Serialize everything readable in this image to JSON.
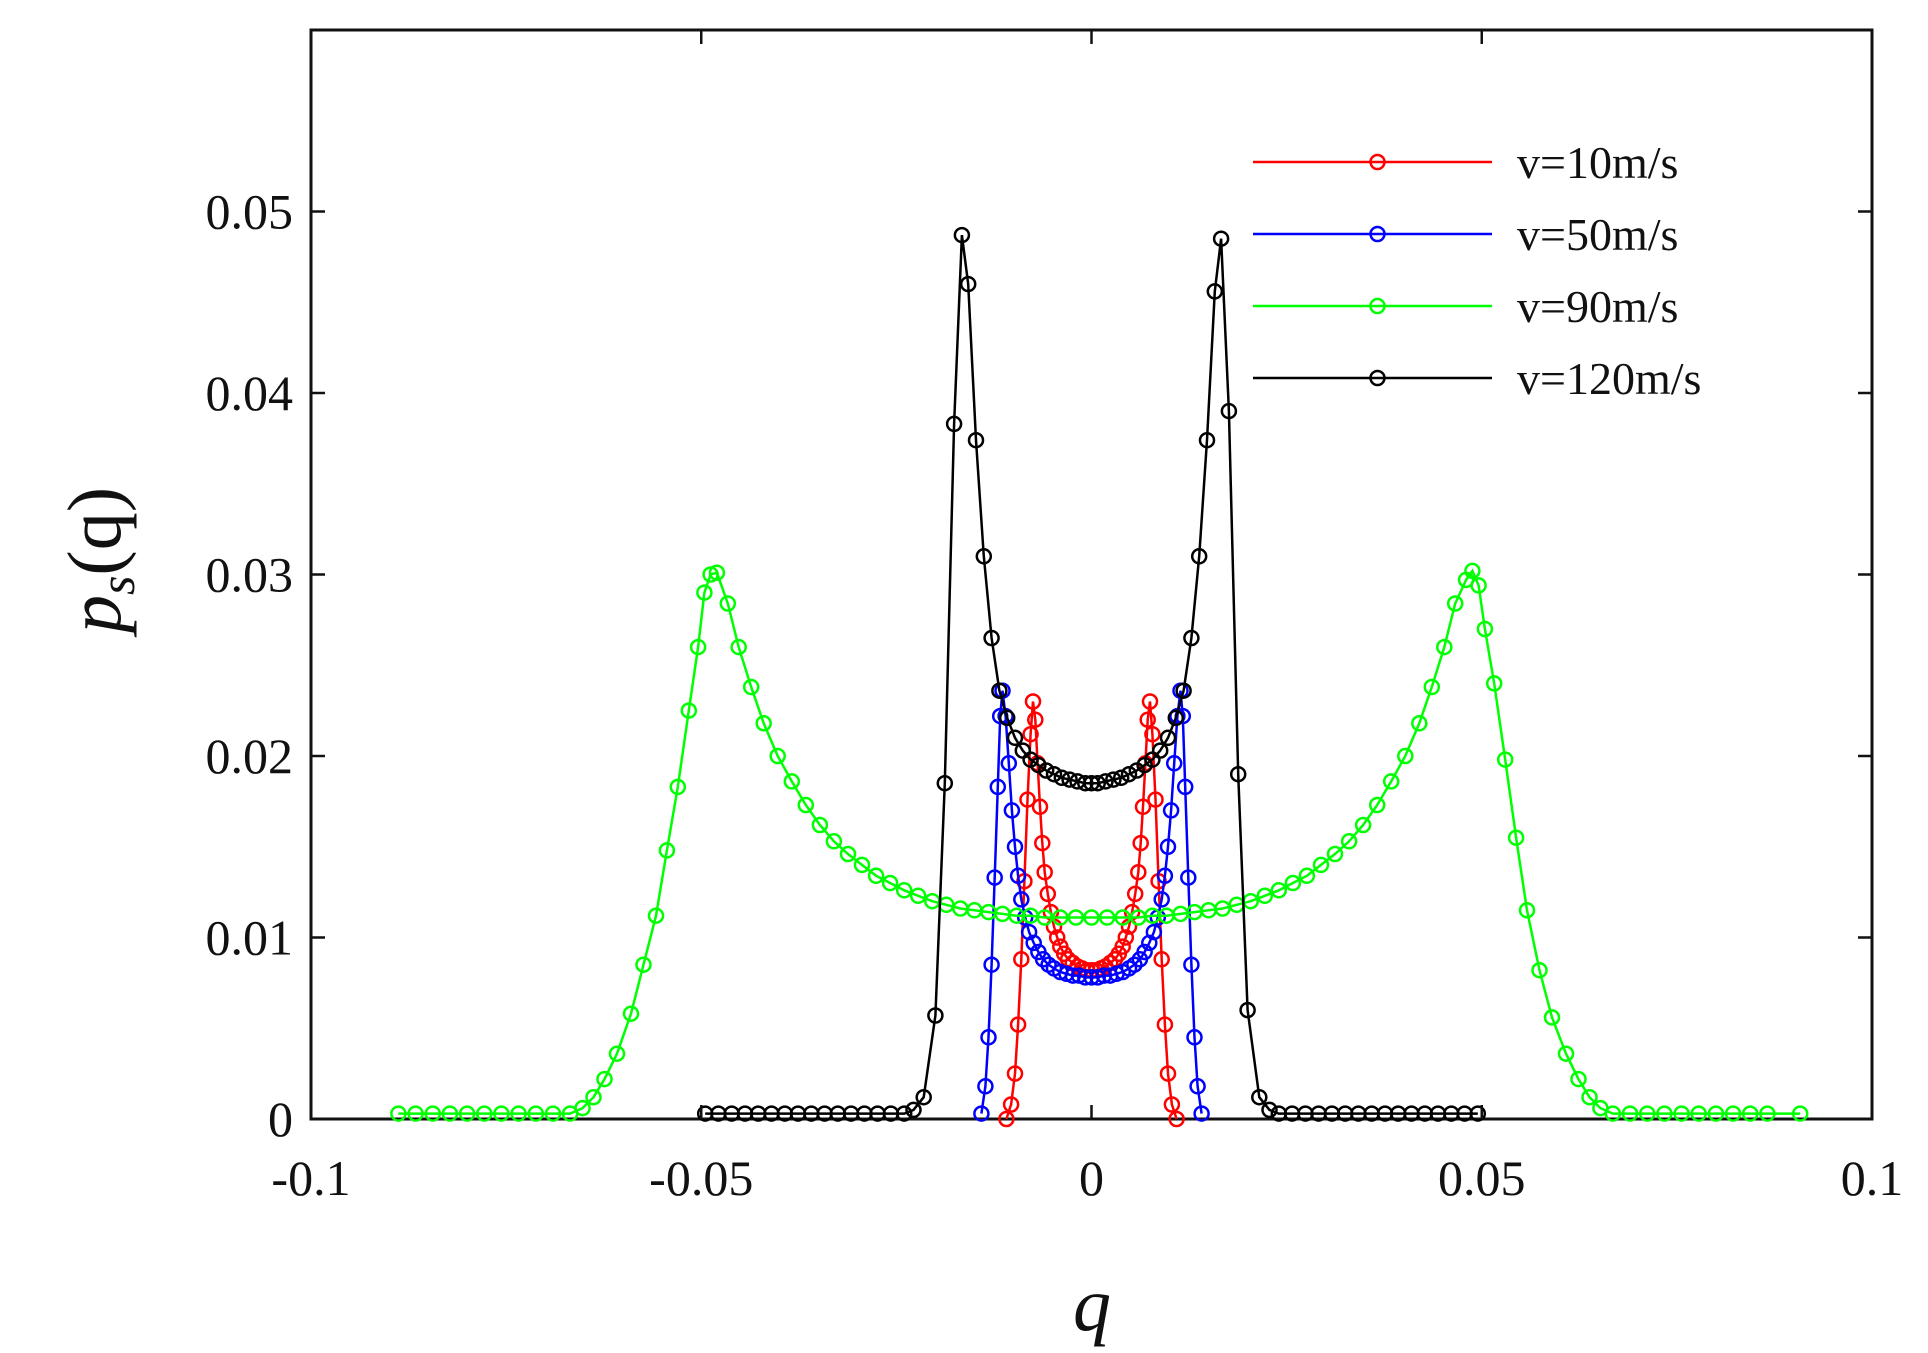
{
  "chart_data": {
    "type": "line",
    "title": "",
    "xlabel": "q",
    "ylabel": "p_s(q)",
    "ylabel_main": "p",
    "ylabel_sub": "s",
    "ylabel_paren": "(q)",
    "xlim": [
      -0.1,
      0.1
    ],
    "ylim": [
      0,
      0.06
    ],
    "xticks": [
      -0.1,
      -0.05,
      0,
      0.05,
      0.1
    ],
    "xtick_labels": [
      "-0.1",
      "-0.05",
      "0",
      "0.05",
      "0.1"
    ],
    "yticks": [
      0,
      0.01,
      0.02,
      0.03,
      0.04,
      0.05
    ],
    "ytick_labels": [
      "0",
      "0.01",
      "0.02",
      "0.03",
      "0.04",
      "0.05"
    ],
    "grid": false,
    "legend_position": "top-right",
    "marker": "circle",
    "series": [
      {
        "name": "v=10m/s",
        "color": "#ff0000",
        "points": [
          [
            -0.0109,
            0
          ],
          [
            -0.0103,
            0.0008
          ],
          [
            -0.0098,
            0.0025
          ],
          [
            -0.0094,
            0.0052
          ],
          [
            -0.009,
            0.0088
          ],
          [
            -0.0086,
            0.0131
          ],
          [
            -0.0082,
            0.0176
          ],
          [
            -0.0078,
            0.0212
          ],
          [
            -0.0075,
            0.023
          ],
          [
            -0.0072,
            0.022
          ],
          [
            -0.0069,
            0.0196
          ],
          [
            -0.0066,
            0.0172
          ],
          [
            -0.0063,
            0.0152
          ],
          [
            -0.006,
            0.0136
          ],
          [
            -0.0056,
            0.0124
          ],
          [
            -0.0052,
            0.0114
          ],
          [
            -0.0048,
            0.0106
          ],
          [
            -0.0044,
            0.01
          ],
          [
            -0.004,
            0.0095
          ],
          [
            -0.0035,
            0.0091
          ],
          [
            -0.003,
            0.0088
          ],
          [
            -0.0024,
            0.0086
          ],
          [
            -0.0018,
            0.0084
          ],
          [
            -0.0012,
            0.0083
          ],
          [
            -0.0006,
            0.0082
          ],
          [
            0,
            0.0082
          ],
          [
            0.0006,
            0.0082
          ],
          [
            0.0012,
            0.0083
          ],
          [
            0.0018,
            0.0084
          ],
          [
            0.0024,
            0.0086
          ],
          [
            0.003,
            0.0088
          ],
          [
            0.0035,
            0.0091
          ],
          [
            0.004,
            0.0095
          ],
          [
            0.0044,
            0.01
          ],
          [
            0.0048,
            0.0106
          ],
          [
            0.0052,
            0.0114
          ],
          [
            0.0056,
            0.0124
          ],
          [
            0.006,
            0.0136
          ],
          [
            0.0063,
            0.0152
          ],
          [
            0.0066,
            0.0172
          ],
          [
            0.0069,
            0.0196
          ],
          [
            0.0072,
            0.022
          ],
          [
            0.0075,
            0.023
          ],
          [
            0.0078,
            0.0212
          ],
          [
            0.0082,
            0.0176
          ],
          [
            0.0086,
            0.0131
          ],
          [
            0.009,
            0.0088
          ],
          [
            0.0094,
            0.0052
          ],
          [
            0.0098,
            0.0025
          ],
          [
            0.0103,
            0.0008
          ],
          [
            0.0109,
            0
          ]
        ]
      },
      {
        "name": "v=50m/s",
        "color": "#0000ff",
        "points": [
          [
            -0.0141,
            0.0003
          ],
          [
            -0.0136,
            0.0018
          ],
          [
            -0.0132,
            0.0045
          ],
          [
            -0.0128,
            0.0085
          ],
          [
            -0.0124,
            0.0133
          ],
          [
            -0.012,
            0.0183
          ],
          [
            -0.0117,
            0.0222
          ],
          [
            -0.0114,
            0.0236
          ],
          [
            -0.011,
            0.0222
          ],
          [
            -0.0106,
            0.0196
          ],
          [
            -0.0102,
            0.017
          ],
          [
            -0.0098,
            0.015
          ],
          [
            -0.0094,
            0.0134
          ],
          [
            -0.009,
            0.0121
          ],
          [
            -0.0085,
            0.0111
          ],
          [
            -0.008,
            0.0103
          ],
          [
            -0.0074,
            0.0097
          ],
          [
            -0.0068,
            0.0092
          ],
          [
            -0.0062,
            0.0088
          ],
          [
            -0.0055,
            0.0085
          ],
          [
            -0.0048,
            0.0083
          ],
          [
            -0.004,
            0.0081
          ],
          [
            -0.0032,
            0.008
          ],
          [
            -0.0024,
            0.0079
          ],
          [
            -0.0016,
            0.0079
          ],
          [
            -0.0008,
            0.0078
          ],
          [
            0,
            0.0078
          ],
          [
            0.0008,
            0.0078
          ],
          [
            0.0016,
            0.0079
          ],
          [
            0.0024,
            0.0079
          ],
          [
            0.0032,
            0.008
          ],
          [
            0.004,
            0.0081
          ],
          [
            0.0048,
            0.0083
          ],
          [
            0.0055,
            0.0085
          ],
          [
            0.0062,
            0.0088
          ],
          [
            0.0068,
            0.0092
          ],
          [
            0.0074,
            0.0097
          ],
          [
            0.008,
            0.0103
          ],
          [
            0.0085,
            0.0111
          ],
          [
            0.009,
            0.0121
          ],
          [
            0.0094,
            0.0134
          ],
          [
            0.0098,
            0.015
          ],
          [
            0.0102,
            0.017
          ],
          [
            0.0106,
            0.0196
          ],
          [
            0.011,
            0.0222
          ],
          [
            0.0114,
            0.0236
          ],
          [
            0.0117,
            0.0222
          ],
          [
            0.012,
            0.0183
          ],
          [
            0.0124,
            0.0133
          ],
          [
            0.0128,
            0.0085
          ],
          [
            0.0132,
            0.0045
          ],
          [
            0.0136,
            0.0018
          ],
          [
            0.0141,
            0.0003
          ]
        ]
      },
      {
        "name": "v=90m/s",
        "color": "#00ff00",
        "points": [
          [
            -0.0888,
            0.0003
          ],
          [
            -0.0866,
            0.0003
          ],
          [
            -0.0844,
            0.0003
          ],
          [
            -0.0822,
            0.0003
          ],
          [
            -0.08,
            0.0003
          ],
          [
            -0.0778,
            0.0003
          ],
          [
            -0.0756,
            0.0003
          ],
          [
            -0.0734,
            0.0003
          ],
          [
            -0.0712,
            0.0003
          ],
          [
            -0.069,
            0.0003
          ],
          [
            -0.0668,
            0.0003
          ],
          [
            -0.0652,
            0.0006
          ],
          [
            -0.0638,
            0.0012
          ],
          [
            -0.0624,
            0.0022
          ],
          [
            -0.0608,
            0.0036
          ],
          [
            -0.059,
            0.0058
          ],
          [
            -0.0574,
            0.0085
          ],
          [
            -0.0558,
            0.0112
          ],
          [
            -0.0544,
            0.0148
          ],
          [
            -0.053,
            0.0183
          ],
          [
            -0.0516,
            0.0225
          ],
          [
            -0.0504,
            0.026
          ],
          [
            -0.0496,
            0.029
          ],
          [
            -0.0488,
            0.03
          ],
          [
            -0.048,
            0.0301
          ],
          [
            -0.0466,
            0.0284
          ],
          [
            -0.0452,
            0.026
          ],
          [
            -0.0436,
            0.0238
          ],
          [
            -0.042,
            0.0218
          ],
          [
            -0.0402,
            0.02
          ],
          [
            -0.0384,
            0.0186
          ],
          [
            -0.0366,
            0.0173
          ],
          [
            -0.0348,
            0.0162
          ],
          [
            -0.033,
            0.0153
          ],
          [
            -0.0312,
            0.0146
          ],
          [
            -0.0294,
            0.014
          ],
          [
            -0.0276,
            0.0134
          ],
          [
            -0.0258,
            0.013
          ],
          [
            -0.024,
            0.0126
          ],
          [
            -0.0222,
            0.0123
          ],
          [
            -0.0204,
            0.012
          ],
          [
            -0.0186,
            0.0118
          ],
          [
            -0.0168,
            0.0116
          ],
          [
            -0.015,
            0.0115
          ],
          [
            -0.0132,
            0.0114
          ],
          [
            -0.0114,
            0.0113
          ],
          [
            -0.0096,
            0.0112
          ],
          [
            -0.0078,
            0.0112
          ],
          [
            -0.006,
            0.0111
          ],
          [
            -0.004,
            0.0111
          ],
          [
            -0.002,
            0.0111
          ],
          [
            0,
            0.0111
          ],
          [
            0.002,
            0.0111
          ],
          [
            0.004,
            0.0111
          ],
          [
            0.006,
            0.0111
          ],
          [
            0.0078,
            0.0112
          ],
          [
            0.0096,
            0.0112
          ],
          [
            0.0114,
            0.0113
          ],
          [
            0.0132,
            0.0114
          ],
          [
            0.015,
            0.0115
          ],
          [
            0.0168,
            0.0116
          ],
          [
            0.0186,
            0.0118
          ],
          [
            0.0204,
            0.012
          ],
          [
            0.0222,
            0.0123
          ],
          [
            0.024,
            0.0126
          ],
          [
            0.0258,
            0.013
          ],
          [
            0.0276,
            0.0134
          ],
          [
            0.0294,
            0.014
          ],
          [
            0.0312,
            0.0146
          ],
          [
            0.033,
            0.0153
          ],
          [
            0.0348,
            0.0162
          ],
          [
            0.0366,
            0.0173
          ],
          [
            0.0384,
            0.0186
          ],
          [
            0.0402,
            0.02
          ],
          [
            0.042,
            0.0218
          ],
          [
            0.0436,
            0.0238
          ],
          [
            0.0452,
            0.026
          ],
          [
            0.0466,
            0.0284
          ],
          [
            0.048,
            0.0297
          ],
          [
            0.0488,
            0.0302
          ],
          [
            0.0496,
            0.0294
          ],
          [
            0.0504,
            0.027
          ],
          [
            0.0516,
            0.024
          ],
          [
            0.053,
            0.0198
          ],
          [
            0.0544,
            0.0155
          ],
          [
            0.0558,
            0.0115
          ],
          [
            0.0574,
            0.0082
          ],
          [
            0.059,
            0.0056
          ],
          [
            0.0608,
            0.0036
          ],
          [
            0.0624,
            0.0022
          ],
          [
            0.0638,
            0.0012
          ],
          [
            0.0652,
            0.0006
          ],
          [
            0.0668,
            0.0003
          ],
          [
            0.069,
            0.0003
          ],
          [
            0.0712,
            0.0003
          ],
          [
            0.0734,
            0.0003
          ],
          [
            0.0756,
            0.0003
          ],
          [
            0.0778,
            0.0003
          ],
          [
            0.08,
            0.0003
          ],
          [
            0.0822,
            0.0003
          ],
          [
            0.0844,
            0.0003
          ],
          [
            0.0866,
            0.0003
          ],
          [
            0.0908,
            0.0003
          ]
        ]
      },
      {
        "name": "v=120m/s",
        "color": "#000000",
        "points": [
          [
            -0.0495,
            0.0003
          ],
          [
            -0.0478,
            0.0003
          ],
          [
            -0.0461,
            0.0003
          ],
          [
            -0.0444,
            0.0003
          ],
          [
            -0.0427,
            0.0003
          ],
          [
            -0.041,
            0.0003
          ],
          [
            -0.0393,
            0.0003
          ],
          [
            -0.0376,
            0.0003
          ],
          [
            -0.0359,
            0.0003
          ],
          [
            -0.0342,
            0.0003
          ],
          [
            -0.0325,
            0.0003
          ],
          [
            -0.0308,
            0.0003
          ],
          [
            -0.0291,
            0.0003
          ],
          [
            -0.0274,
            0.0003
          ],
          [
            -0.0257,
            0.0003
          ],
          [
            -0.024,
            0.0003
          ],
          [
            -0.0228,
            0.0005
          ],
          [
            -0.0215,
            0.0012
          ],
          [
            -0.02,
            0.0057
          ],
          [
            -0.0188,
            0.0185
          ],
          [
            -0.0176,
            0.0383
          ],
          [
            -0.0166,
            0.0487
          ],
          [
            -0.0158,
            0.046
          ],
          [
            -0.0148,
            0.0374
          ],
          [
            -0.0138,
            0.031
          ],
          [
            -0.0128,
            0.0265
          ],
          [
            -0.0118,
            0.0236
          ],
          [
            -0.0108,
            0.0221
          ],
          [
            -0.0098,
            0.021
          ],
          [
            -0.0088,
            0.0203
          ],
          [
            -0.0078,
            0.0198
          ],
          [
            -0.0068,
            0.0195
          ],
          [
            -0.0058,
            0.0192
          ],
          [
            -0.0048,
            0.019
          ],
          [
            -0.0038,
            0.0188
          ],
          [
            -0.0028,
            0.0187
          ],
          [
            -0.0018,
            0.0186
          ],
          [
            -0.0008,
            0.0185
          ],
          [
            0,
            0.0185
          ],
          [
            0.0008,
            0.0185
          ],
          [
            0.0018,
            0.0186
          ],
          [
            0.0028,
            0.0187
          ],
          [
            0.0038,
            0.0188
          ],
          [
            0.0048,
            0.019
          ],
          [
            0.0058,
            0.0192
          ],
          [
            0.0068,
            0.0195
          ],
          [
            0.0078,
            0.0198
          ],
          [
            0.0088,
            0.0203
          ],
          [
            0.0098,
            0.021
          ],
          [
            0.0108,
            0.0221
          ],
          [
            0.0118,
            0.0236
          ],
          [
            0.0128,
            0.0265
          ],
          [
            0.0138,
            0.031
          ],
          [
            0.0148,
            0.0374
          ],
          [
            0.0158,
            0.0456
          ],
          [
            0.0166,
            0.0485
          ],
          [
            0.0176,
            0.039
          ],
          [
            0.0188,
            0.019
          ],
          [
            0.02,
            0.006
          ],
          [
            0.0215,
            0.0012
          ],
          [
            0.0228,
            0.0005
          ],
          [
            0.024,
            0.0003
          ],
          [
            0.0257,
            0.0003
          ],
          [
            0.0274,
            0.0003
          ],
          [
            0.0291,
            0.0003
          ],
          [
            0.0308,
            0.0003
          ],
          [
            0.0325,
            0.0003
          ],
          [
            0.0342,
            0.0003
          ],
          [
            0.0359,
            0.0003
          ],
          [
            0.0376,
            0.0003
          ],
          [
            0.0393,
            0.0003
          ],
          [
            0.041,
            0.0003
          ],
          [
            0.0427,
            0.0003
          ],
          [
            0.0444,
            0.0003
          ],
          [
            0.0461,
            0.0003
          ],
          [
            0.0478,
            0.0003
          ],
          [
            0.0495,
            0.0003
          ]
        ]
      }
    ]
  }
}
